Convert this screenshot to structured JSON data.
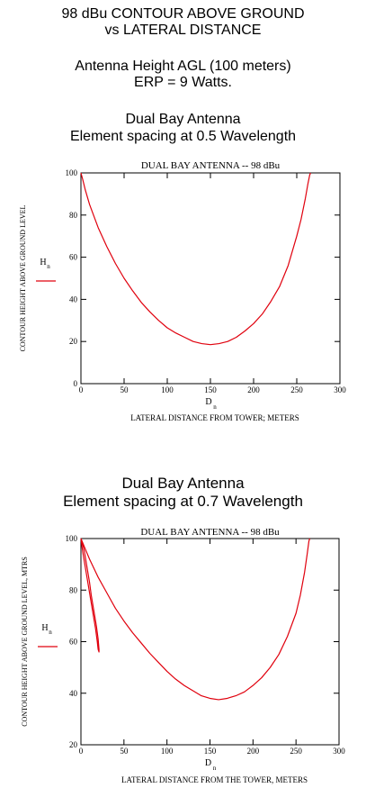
{
  "header": {
    "title_line1": "98 dBu CONTOUR ABOVE GROUND",
    "title_line2": "vs LATERAL DISTANCE",
    "antenna_height": "Antenna Height AGL (100 meters)",
    "erp": "ERP = 9 Watts."
  },
  "section1": {
    "heading_line1": "Dual Bay Antenna",
    "heading_line2": "Element spacing at 0.5 Wavelength"
  },
  "section2": {
    "heading_line1": "Dual Bay Antenna",
    "heading_line2": "Element spacing at 0.7 Wavelength"
  },
  "chart_data": [
    {
      "type": "line",
      "title": "DUAL BAY ANTENNA -- 98 dBu",
      "xlabel": "LATERAL DISTANCE FROM TOWER; METERS",
      "ylabel": "CONTOUR HEIGHT ABOVE GROUND LEVEL",
      "x_var": "D",
      "y_var": "H",
      "var_sub": "n",
      "xlim": [
        0,
        300
      ],
      "ylim": [
        0,
        100
      ],
      "x_ticks": [
        0,
        50,
        100,
        150,
        200,
        250,
        300
      ],
      "y_ticks": [
        0,
        20,
        40,
        60,
        80,
        100
      ],
      "grid": false,
      "line_color": "#e0000d",
      "series": [
        {
          "x": [
            0,
            2,
            5,
            10,
            20,
            30,
            40,
            50,
            60,
            70,
            80,
            90,
            100,
            110,
            120,
            130,
            140,
            150,
            160,
            170,
            180,
            190,
            200,
            210,
            220,
            230,
            240,
            250,
            255,
            260,
            263,
            265,
            266
          ],
          "y": [
            100,
            97,
            92,
            85,
            74,
            65,
            57,
            50,
            44,
            38.5,
            34,
            30,
            26.5,
            24,
            22,
            20,
            19,
            18.5,
            19,
            20,
            22,
            25,
            28.5,
            33,
            39,
            46,
            56,
            70,
            78,
            88,
            95,
            99,
            100
          ]
        }
      ]
    },
    {
      "type": "line",
      "title": "DUAL BAY ANTENNA -- 98 dBu",
      "xlabel": "LATERAL DISTANCE FROM THE TOWER, METERS",
      "ylabel": "CONTOUR HEIGHT ABOVE GROUND LEVEL, MTRS",
      "x_var": "D",
      "y_var": "H",
      "var_sub": "n",
      "xlim": [
        0,
        300
      ],
      "ylim": [
        20,
        100
      ],
      "x_ticks": [
        0,
        50,
        100,
        150,
        200,
        250,
        300
      ],
      "y_ticks": [
        20,
        40,
        60,
        80,
        100
      ],
      "grid": false,
      "line_color": "#e0000d",
      "series": [
        {
          "x": [
            0,
            2,
            5,
            8,
            11,
            14,
            17,
            19,
            20,
            21,
            21,
            20,
            18,
            15,
            12,
            10,
            8,
            6,
            4,
            2,
            0
          ],
          "y": [
            100,
            95,
            89,
            83,
            77,
            71,
            65,
            60,
            57,
            56,
            57,
            61,
            66,
            72,
            78,
            83,
            87,
            91,
            95,
            98,
            100
          ]
        },
        {
          "x": [
            0,
            5,
            10,
            20,
            30,
            40,
            50,
            60,
            70,
            80,
            90,
            100,
            110,
            120,
            130,
            140,
            150,
            160,
            170,
            180,
            190,
            200,
            210,
            220,
            230,
            240,
            250,
            255,
            260,
            263,
            265,
            266
          ],
          "y": [
            100,
            96,
            92,
            85,
            79,
            73,
            68,
            63.5,
            59.5,
            55.5,
            52,
            48.5,
            45.5,
            43,
            41,
            39,
            38,
            37.5,
            38,
            39,
            40.5,
            43,
            46,
            50,
            55,
            62,
            71,
            78,
            87,
            94,
            99,
            100
          ]
        }
      ]
    }
  ]
}
